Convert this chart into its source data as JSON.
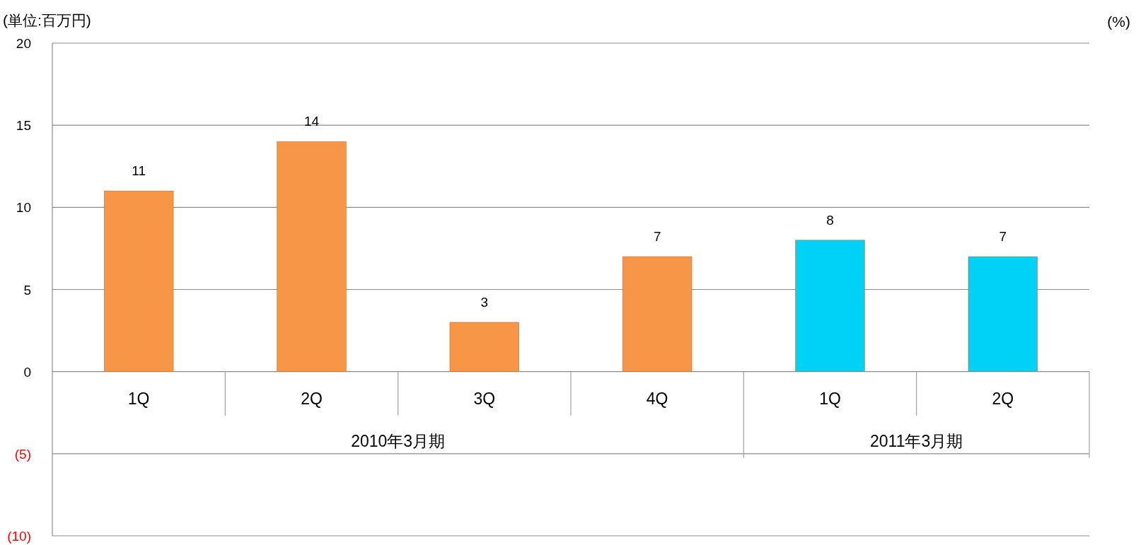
{
  "chart_data": {
    "type": "bar",
    "categories": [
      "1Q",
      "2Q",
      "3Q",
      "4Q",
      "1Q",
      "2Q"
    ],
    "values": [
      11,
      14,
      3,
      7,
      8,
      7
    ],
    "colors": [
      "#f79646",
      "#f79646",
      "#f79646",
      "#f79646",
      "#00d2f7",
      "#00d2f7"
    ],
    "ylim": [
      -10,
      20
    ],
    "yticks": [
      20,
      15,
      10,
      5,
      0,
      {
        "value": -5,
        "label": "(5)"
      },
      {
        "value": -10,
        "label": "(10)"
      }
    ],
    "grid": "y",
    "data_labels": true,
    "annotations": [
      "(単位:百万円)",
      "(%)",
      "2010年3月期",
      "2011年3月期"
    ]
  }
}
